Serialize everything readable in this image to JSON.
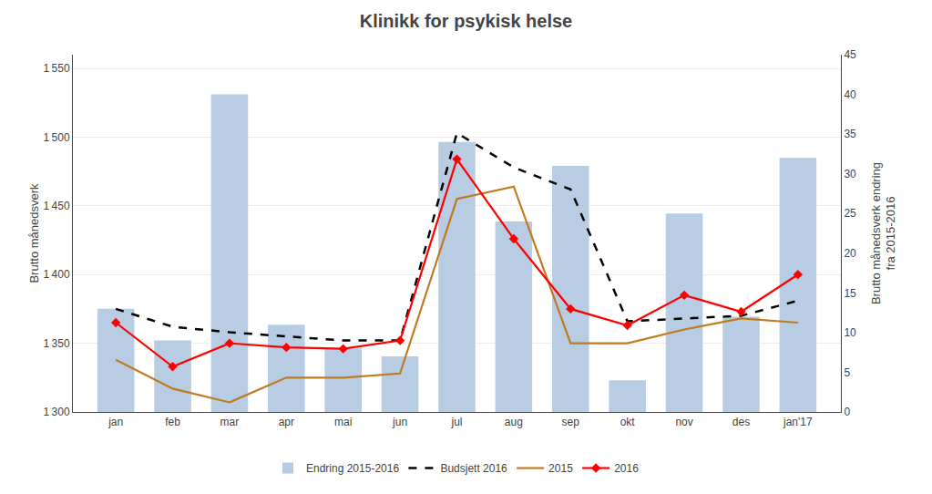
{
  "chart_data": {
    "type": "bar",
    "title": "Klinikk for psykisk helse",
    "categories": [
      "jan",
      "feb",
      "mar",
      "apr",
      "mai",
      "jun",
      "jul",
      "aug",
      "sep",
      "okt",
      "nov",
      "des",
      "jan'17"
    ],
    "ylabel": "Brutto månedsverk",
    "y2label": "Brutto månedsverk endring\nfra 2015-2016",
    "ylim": [
      1300,
      1560
    ],
    "yticks": [
      {
        "value": 1300,
        "label": "1 300"
      },
      {
        "value": 1350,
        "label": "1 350"
      },
      {
        "value": 1400,
        "label": "1 400"
      },
      {
        "value": 1450,
        "label": "1 450"
      },
      {
        "value": 1500,
        "label": "1 500"
      },
      {
        "value": 1550,
        "label": "1 550"
      }
    ],
    "y2lim": [
      0,
      45
    ],
    "y2ticks": [
      0,
      5,
      10,
      15,
      20,
      25,
      30,
      35,
      40,
      45
    ],
    "grid": true,
    "legend": "bottom",
    "series": [
      {
        "name": "Endring 2015-2016",
        "type": "bar",
        "axis": "y2",
        "color": "#b8cce4",
        "values": [
          13,
          9,
          40,
          11,
          8,
          7,
          34,
          24,
          31,
          4,
          25,
          12,
          32
        ]
      },
      {
        "name": "Budsjett 2016",
        "type": "line",
        "color": "#000000",
        "line_style": "dashed",
        "values": [
          1375,
          1362,
          1358,
          1355,
          1352,
          1352,
          1503,
          1478,
          1462,
          1366,
          1368,
          1370,
          1381
        ]
      },
      {
        "name": "2015",
        "type": "line",
        "color": "#c07a20",
        "line_style": "solid",
        "values": [
          1338,
          1317,
          1307,
          1325,
          1325,
          1328,
          1455,
          1464,
          1350,
          1350,
          1360,
          1368,
          1365
        ]
      },
      {
        "name": "2016",
        "type": "line",
        "color": "#ff0000",
        "line_style": "solid",
        "marker": "diamond",
        "values": [
          1365,
          1333,
          1350,
          1347,
          1346,
          1352,
          1484,
          1426,
          1375,
          1363,
          1385,
          1373,
          1400
        ]
      }
    ]
  }
}
